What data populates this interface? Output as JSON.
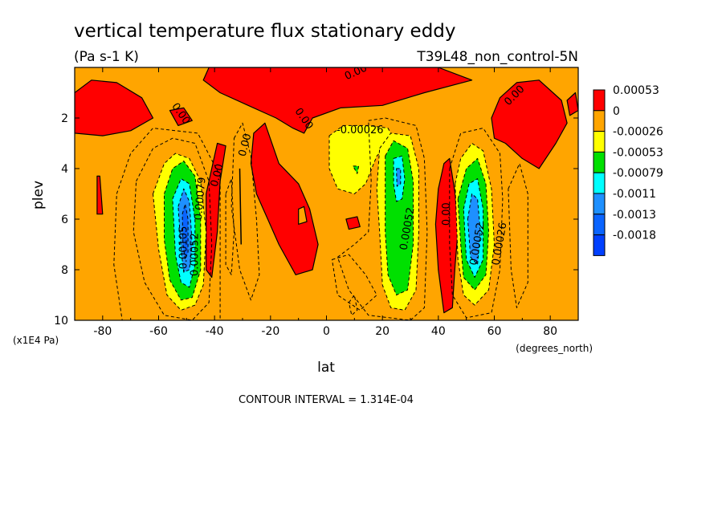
{
  "chart_data": {
    "type": "heatmap",
    "title": "vertical temperature flux stationary eddy",
    "units": "(Pa s-1 K)",
    "run_label": "T39L48_non_control-5N",
    "xlabel": "lat",
    "xunits": "(degrees_north)",
    "ylabel": "plev",
    "yunits": "(x1E4 Pa)",
    "xlim": [
      -90,
      90
    ],
    "ylim": [
      10,
      0
    ],
    "xticks": [
      -80,
      -60,
      -40,
      -20,
      0,
      20,
      40,
      60,
      80
    ],
    "yticks": [
      2,
      4,
      6,
      8,
      10
    ],
    "contour_interval": "CONTOUR INTERVAL = 1.314E-04",
    "legend": {
      "labels": [
        "0.00053",
        "0",
        "-0.00026",
        "-0.00053",
        "-0.00079",
        "-0.0011",
        "-0.0013",
        "-0.0018"
      ],
      "colors": [
        "#ff0000",
        "#ffa500",
        "#ffff00",
        "#00e000",
        "#00ffff",
        "#1e90ff",
        "#0a64ff",
        "#0040ff"
      ]
    },
    "colors": {
      "background_field": "#ffa500",
      "positive": "#ff0000",
      "neg1": "#ffff00",
      "neg2": "#00e000",
      "neg3": "#00ffff",
      "neg4": "#1e90ff",
      "neg5": "#0a64ff"
    },
    "contour_labels": [
      {
        "text": "0.00",
        "lon": 11,
        "p": 0.3,
        "rot": -25
      },
      {
        "text": "0.00",
        "lon": -53,
        "p": 1.9,
        "rot": 55
      },
      {
        "text": "0.00",
        "lon": -9,
        "p": 2.1,
        "rot": 55
      },
      {
        "text": "0.00",
        "lon": 68,
        "p": 1.2,
        "rot": -45
      },
      {
        "text": "0.00",
        "lon": -28,
        "p": 3.1,
        "rot": -75
      },
      {
        "text": "0.00",
        "lon": -38,
        "p": 4.3,
        "rot": -75
      },
      {
        "text": "0.00",
        "lon": 44,
        "p": 5.8,
        "rot": -90
      },
      {
        "text": "-0.00026",
        "lon": 12,
        "p": 2.6,
        "rot": 0
      },
      {
        "text": "0.00052",
        "lon": 30,
        "p": 6.4,
        "rot": -80
      },
      {
        "text": "0.00052",
        "lon": 55,
        "p": 7.0,
        "rot": -80
      },
      {
        "text": "0.00026",
        "lon": 63,
        "p": 7.0,
        "rot": -80
      },
      {
        "text": "-0.00105",
        "lon": -50,
        "p": 7.2,
        "rot": -90
      },
      {
        "text": "0.00079",
        "lon": -44,
        "p": 5.2,
        "rot": -85
      },
      {
        "text": "0.00052",
        "lon": -46,
        "p": 7.4,
        "rot": -90
      }
    ]
  }
}
